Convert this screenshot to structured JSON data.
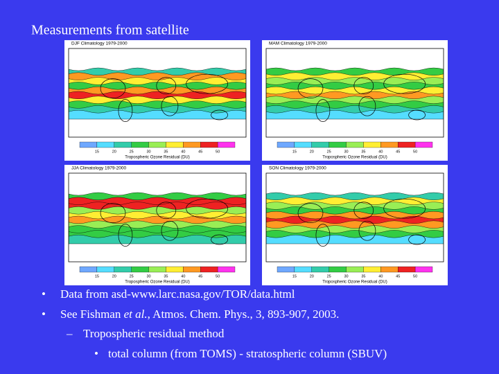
{
  "title": "Measurements from satellite",
  "panels": [
    {
      "label": "DJF Climatology 1979-2000"
    },
    {
      "label": "MAM Climatology 1979-2000"
    },
    {
      "label": "JJA Climatology 1979-2000"
    },
    {
      "label": "SON Climatology 1979-2000"
    }
  ],
  "colorbar": {
    "ticks": [
      15,
      20,
      25,
      30,
      35,
      40,
      45,
      50
    ],
    "caption": "Tropospheric Ozone Residual (DU)"
  },
  "bullets": [
    {
      "parts": [
        "Data from asd-www.larc.nasa.gov/TOR/data.html"
      ]
    },
    {
      "parts": [
        "See Fishman ",
        "et al.",
        ", Atmos. Chem. Phys., 3, 893-907, 2003."
      ]
    }
  ],
  "sub_bullet": "Tropospheric residual method",
  "sub_sub_bullet": "total column (from TOMS) - stratospheric column (SBUV)"
}
